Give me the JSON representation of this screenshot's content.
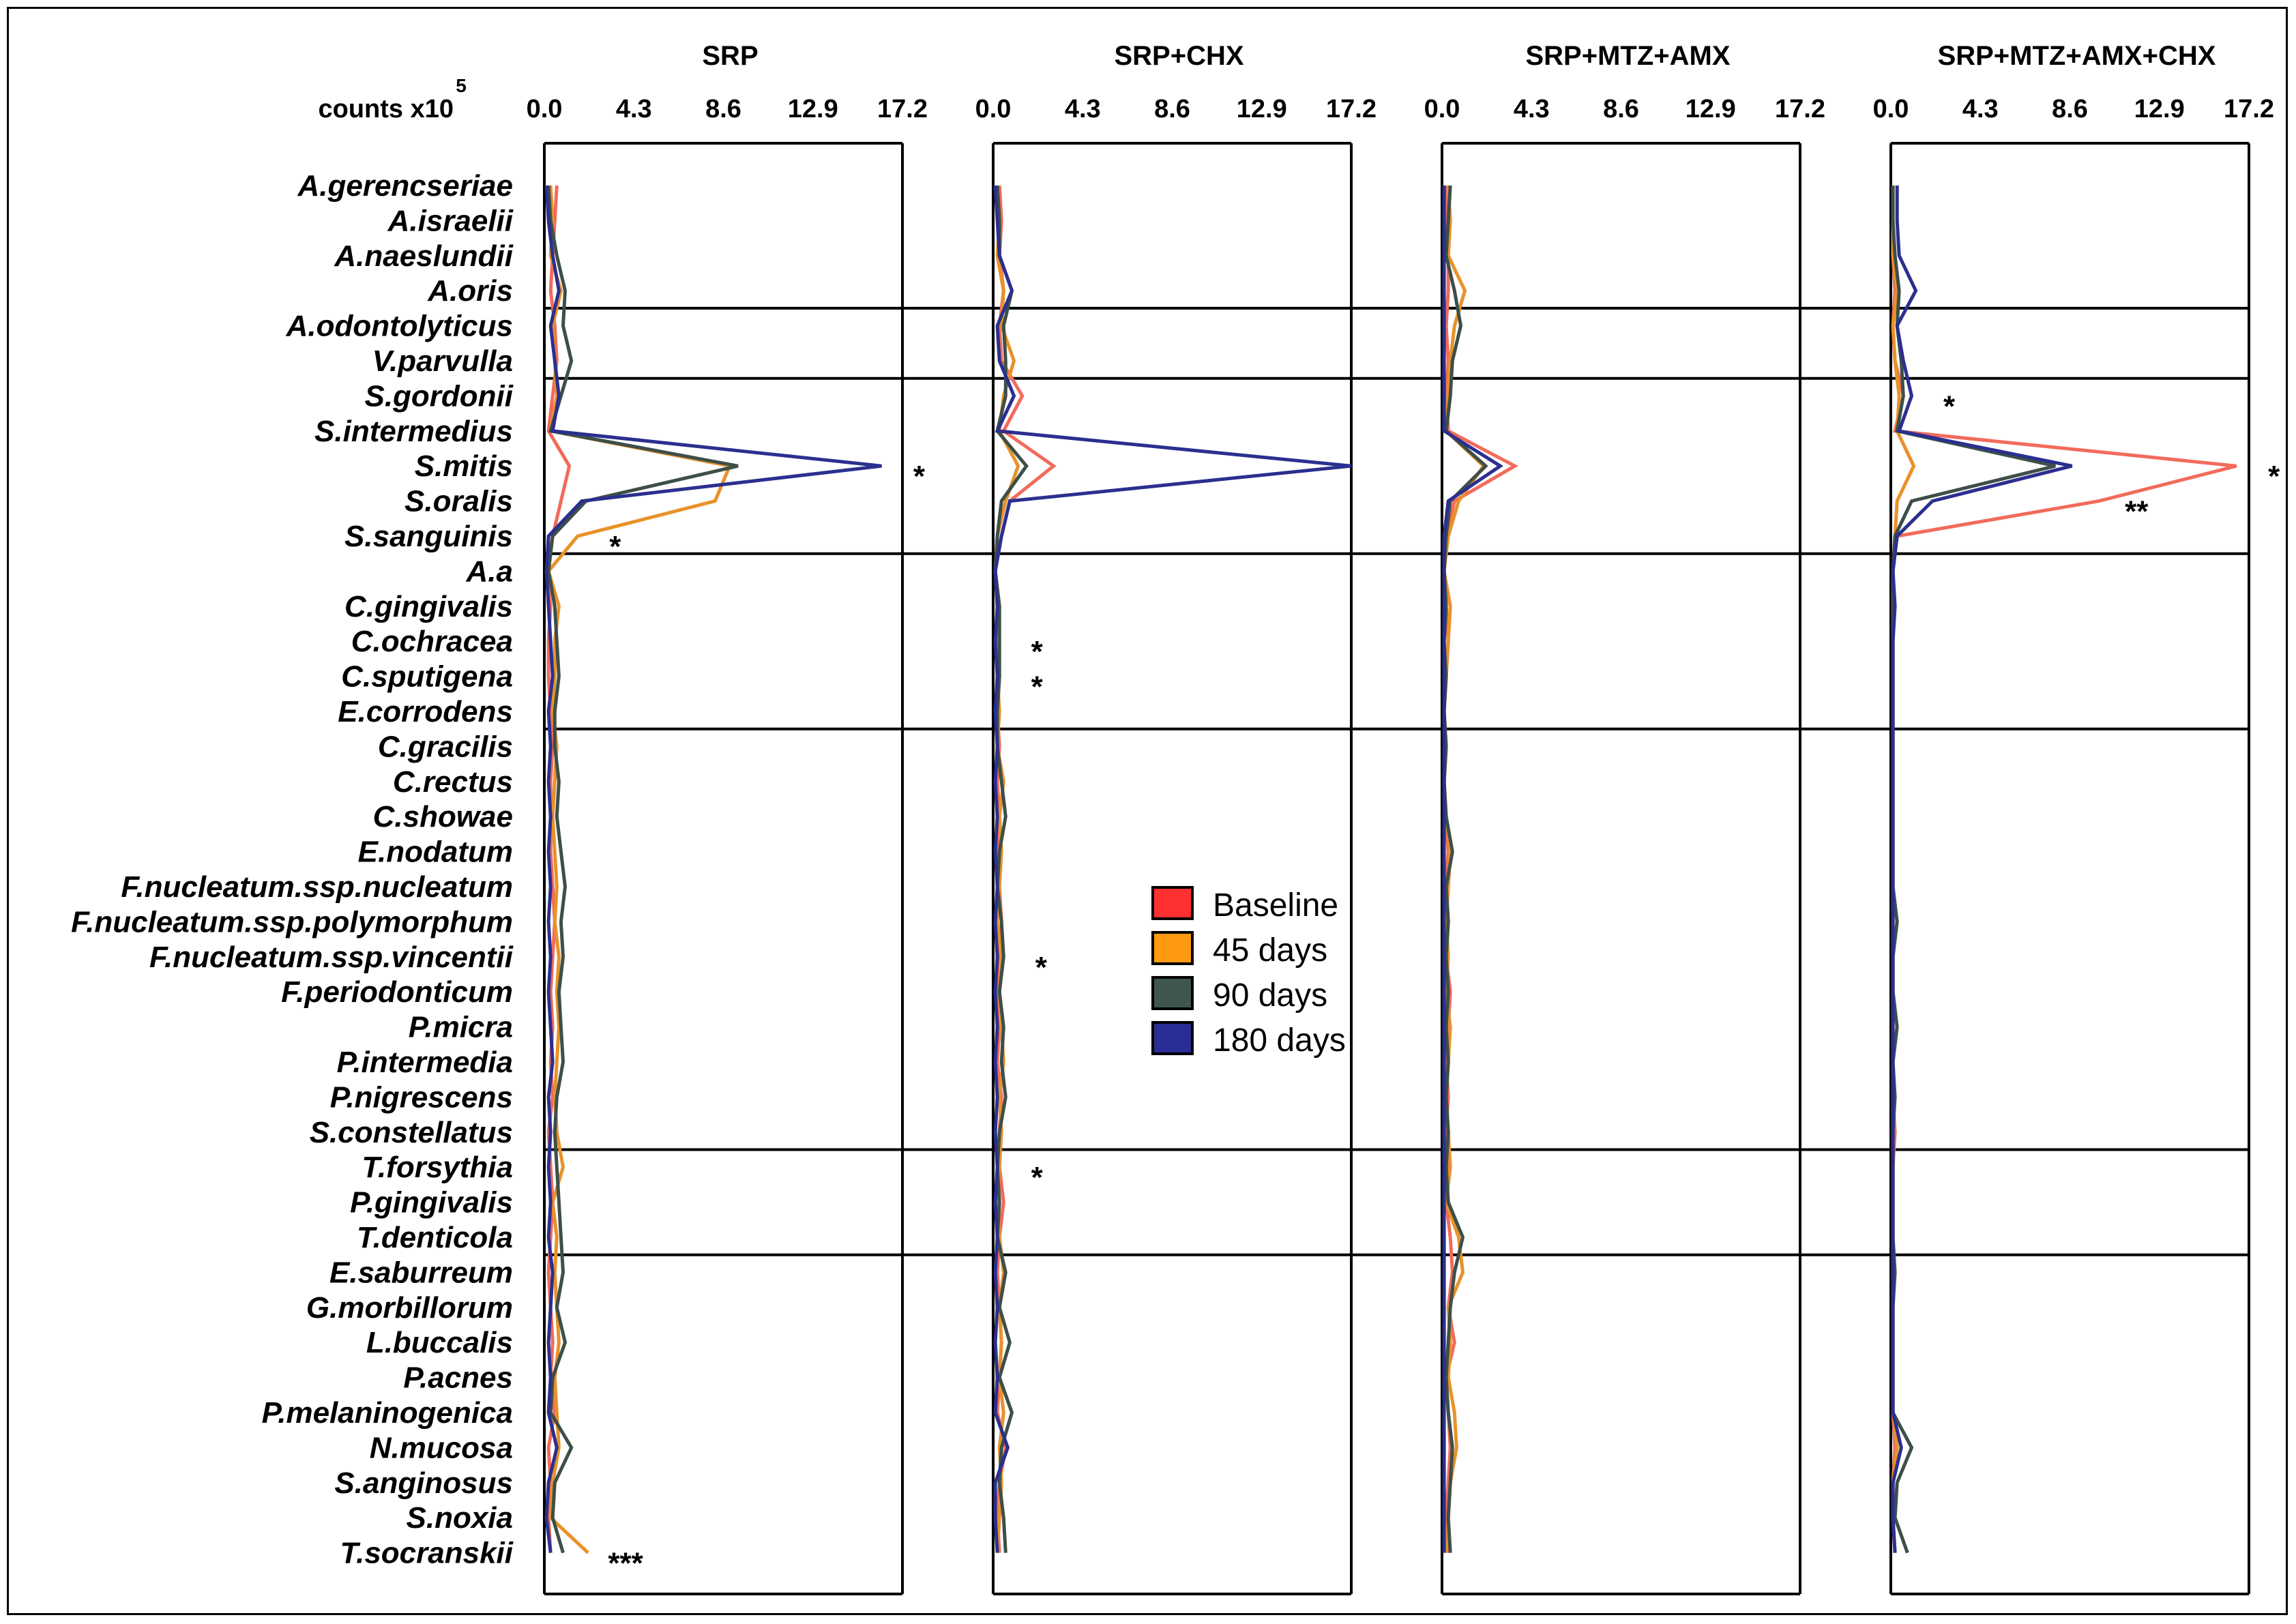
{
  "chart_data": {
    "type": "line",
    "value_units": "counts x10",
    "value_units_exponent": "5",
    "xlim": [
      0,
      17.2
    ],
    "xticks": [
      "0.0",
      "4.3",
      "8.6",
      "12.9",
      "17.2"
    ],
    "species": [
      "A.gerencseriae",
      "A.israelii",
      "A.naeslundii",
      "A.oris",
      "A.odontolyticus",
      "V.parvulla",
      "S.gordonii",
      "S.intermedius",
      "S.mitis",
      "S.oralis",
      "S.sanguinis",
      "A.a",
      "C.gingivalis",
      "C.ochracea",
      "C.sputigena",
      "E.corrodens",
      "C.gracilis",
      "C.rectus",
      "C.showae",
      "E.nodatum",
      "F.nucleatum.ssp.nucleatum",
      "F.nucleatum.ssp.polymorphum",
      "F.nucleatum.ssp.vincentii",
      "F.periodonticum",
      "P.micra",
      "P.intermedia",
      "P.nigrescens",
      "S.constellatus",
      "T.forsythia",
      "P.gingivalis",
      "T.denticola",
      "E.saburreum",
      "G.morbillorum",
      "L.buccalis",
      "P.acnes",
      "P.melaninogenica",
      "N.mucosa",
      "S.anginosus",
      "S.noxia",
      "T.socranskii"
    ],
    "complex_breaks_after": [
      3,
      5,
      10,
      15,
      27,
      30
    ],
    "legend": [
      {
        "name": "Baseline",
        "color": "#f26b5b",
        "swatch": "#ff3030"
      },
      {
        "name": "45 days",
        "color": "#e8922a",
        "swatch": "#ff9a10"
      },
      {
        "name": "90 days",
        "color": "#3d4f48",
        "swatch": "#3f5650"
      },
      {
        "name": "180 days",
        "color": "#2b2f8f",
        "swatch": "#2a2d96"
      }
    ],
    "panels": [
      {
        "title": "SRP",
        "series": [
          {
            "name": "Baseline",
            "values": [
              0.6,
              0.5,
              0.4,
              0.3,
              0.5,
              0.6,
              0.4,
              0.2,
              1.2,
              0.8,
              0.4,
              0.1,
              0.3,
              0.2,
              0.2,
              0.3,
              0.4,
              0.3,
              0.3,
              0.3,
              0.4,
              0.5,
              0.4,
              0.3,
              0.4,
              0.3,
              0.4,
              0.2,
              0.3,
              0.4,
              0.3,
              0.2,
              0.3,
              0.4,
              0.3,
              0.5,
              0.2,
              0.3,
              0.2,
              0.3
            ]
          },
          {
            "name": "45 days",
            "values": [
              0.3,
              0.4,
              0.3,
              0.8,
              0.4,
              0.5,
              0.6,
              0.3,
              8.9,
              8.2,
              1.6,
              0.2,
              0.7,
              0.5,
              0.5,
              0.4,
              0.6,
              0.5,
              0.4,
              0.5,
              0.6,
              0.5,
              0.7,
              0.6,
              0.7,
              0.6,
              0.5,
              0.6,
              0.9,
              0.4,
              0.6,
              0.5,
              0.6,
              0.7,
              0.5,
              0.6,
              0.7,
              0.4,
              0.3,
              2.1
            ]
          },
          {
            "name": "90 days",
            "values": [
              0.2,
              0.3,
              0.6,
              1.0,
              0.9,
              1.3,
              0.8,
              0.3,
              9.3,
              2.0,
              0.4,
              0.2,
              0.5,
              0.6,
              0.7,
              0.5,
              0.5,
              0.7,
              0.6,
              0.8,
              1.0,
              0.8,
              0.9,
              0.7,
              0.8,
              0.9,
              0.6,
              0.5,
              0.6,
              0.7,
              0.8,
              0.9,
              0.6,
              1.0,
              0.4,
              0.3,
              1.3,
              0.5,
              0.4,
              0.9
            ]
          },
          {
            "name": "180 days",
            "values": [
              0.1,
              0.2,
              0.4,
              0.7,
              0.3,
              0.5,
              0.7,
              0.4,
              16.2,
              1.8,
              0.2,
              0.1,
              0.2,
              0.3,
              0.4,
              0.2,
              0.3,
              0.2,
              0.3,
              0.2,
              0.3,
              0.2,
              0.3,
              0.2,
              0.3,
              0.4,
              0.2,
              0.3,
              0.2,
              0.3,
              0.2,
              0.4,
              0.3,
              0.2,
              0.3,
              0.2,
              0.6,
              0.2,
              0.1,
              0.3
            ]
          }
        ],
        "stars": [
          {
            "text": "*",
            "species": "S.mitis"
          },
          {
            "text": "*",
            "species": "S.sanguinis"
          },
          {
            "text": "***",
            "species": "T.socranskii"
          }
        ]
      },
      {
        "title": "SRP+CHX",
        "series": [
          {
            "name": "Baseline",
            "values": [
              0.3,
              0.4,
              0.3,
              0.5,
              0.3,
              0.4,
              1.4,
              0.5,
              2.9,
              0.8,
              0.4,
              0.1,
              0.3,
              0.2,
              0.3,
              0.2,
              0.3,
              0.2,
              0.3,
              0.2,
              0.3,
              0.4,
              0.3,
              0.2,
              0.3,
              0.2,
              0.4,
              0.3,
              0.3,
              0.5,
              0.3,
              0.2,
              0.3,
              0.4,
              0.3,
              0.2,
              0.6,
              0.3,
              0.2,
              0.3
            ]
          },
          {
            "name": "45 days",
            "values": [
              0.2,
              0.3,
              0.2,
              0.5,
              0.4,
              1.0,
              0.5,
              0.3,
              1.2,
              0.6,
              0.2,
              0.1,
              0.2,
              0.3,
              0.2,
              0.3,
              0.2,
              0.5,
              0.3,
              0.4,
              0.3,
              0.2,
              0.4,
              0.3,
              0.4,
              0.5,
              0.3,
              0.4,
              0.3,
              0.2,
              0.3,
              0.5,
              0.3,
              0.4,
              0.3,
              0.5,
              0.3,
              0.4,
              0.3,
              0.2
            ]
          },
          {
            "name": "90 days",
            "values": [
              0.2,
              0.3,
              0.3,
              0.9,
              0.5,
              0.6,
              0.6,
              0.2,
              1.6,
              0.4,
              0.2,
              0.1,
              0.3,
              0.3,
              0.3,
              0.2,
              0.2,
              0.4,
              0.6,
              0.3,
              0.2,
              0.4,
              0.5,
              0.3,
              0.5,
              0.4,
              0.6,
              0.3,
              0.2,
              0.3,
              0.2,
              0.6,
              0.3,
              0.8,
              0.3,
              0.9,
              0.4,
              0.3,
              0.5,
              0.6
            ]
          },
          {
            "name": "180 days",
            "values": [
              0.1,
              0.2,
              0.3,
              0.9,
              0.2,
              0.3,
              1.0,
              0.2,
              17.2,
              0.8,
              0.4,
              0.1,
              0.2,
              0.1,
              0.2,
              0.1,
              0.2,
              0.1,
              0.2,
              0.1,
              0.2,
              0.1,
              0.2,
              0.1,
              0.2,
              0.1,
              0.2,
              0.1,
              0.2,
              0.1,
              0.2,
              0.1,
              0.2,
              0.1,
              0.2,
              0.1,
              0.7,
              0.1,
              0.1,
              0.2
            ]
          }
        ],
        "stars": [
          {
            "text": "*",
            "species": "C.ochracea"
          },
          {
            "text": "*",
            "species": "C.sputigena"
          },
          {
            "text": "*",
            "species": "F.nucleatum.ssp.vincentii"
          },
          {
            "text": "*",
            "species": "T.forsythia"
          }
        ]
      },
      {
        "title": "SRP+MTZ+AMX",
        "series": [
          {
            "name": "Baseline",
            "values": [
              0.2,
              0.2,
              0.3,
              0.3,
              0.2,
              0.3,
              0.2,
              0.3,
              3.5,
              0.6,
              0.2,
              0.1,
              0.2,
              0.3,
              0.2,
              0.1,
              0.2,
              0.1,
              0.2,
              0.3,
              0.2,
              0.3,
              0.2,
              0.4,
              0.3,
              0.2,
              0.3,
              0.2,
              0.3,
              0.2,
              0.4,
              0.5,
              0.3,
              0.6,
              0.2,
              0.3,
              0.4,
              0.3,
              0.2,
              0.3
            ]
          },
          {
            "name": "45 days",
            "values": [
              0.3,
              0.4,
              0.3,
              1.1,
              0.6,
              0.4,
              0.3,
              0.2,
              2.0,
              0.8,
              0.3,
              0.1,
              0.4,
              0.3,
              0.2,
              0.1,
              0.2,
              0.1,
              0.2,
              0.4,
              0.3,
              0.2,
              0.3,
              0.2,
              0.4,
              0.3,
              0.2,
              0.3,
              0.4,
              0.2,
              0.8,
              1.0,
              0.3,
              0.4,
              0.3,
              0.6,
              0.7,
              0.4,
              0.3,
              0.2
            ]
          },
          {
            "name": "90 days",
            "values": [
              0.4,
              0.3,
              0.2,
              0.6,
              0.9,
              0.5,
              0.4,
              0.2,
              2.1,
              0.4,
              0.2,
              0.1,
              0.2,
              0.1,
              0.2,
              0.1,
              0.2,
              0.1,
              0.2,
              0.5,
              0.2,
              0.3,
              0.2,
              0.3,
              0.2,
              0.3,
              0.2,
              0.3,
              0.2,
              0.3,
              1.0,
              0.6,
              0.4,
              0.3,
              0.2,
              0.3,
              0.5,
              0.4,
              0.3,
              0.4
            ]
          },
          {
            "name": "180 days",
            "values": [
              0.1,
              0.1,
              0.1,
              0.1,
              0.1,
              0.1,
              0.1,
              0.1,
              2.8,
              0.3,
              0.1,
              0.1,
              0.1,
              0.1,
              0.1,
              0.1,
              0.1,
              0.1,
              0.1,
              0.1,
              0.1,
              0.1,
              0.1,
              0.1,
              0.1,
              0.1,
              0.1,
              0.1,
              0.1,
              0.1,
              0.1,
              0.1,
              0.1,
              0.1,
              0.1,
              0.1,
              0.1,
              0.1,
              0.1,
              0.1
            ]
          }
        ],
        "stars": []
      },
      {
        "title": "SRP+MTZ+AMX+CHX",
        "series": [
          {
            "name": "Baseline",
            "values": [
              0.1,
              0.1,
              0.1,
              0.2,
              0.1,
              0.2,
              0.6,
              0.2,
              16.6,
              10.0,
              0.3,
              0.1,
              0.1,
              0.1,
              0.1,
              0.1,
              0.1,
              0.1,
              0.1,
              0.1,
              0.1,
              0.1,
              0.1,
              0.1,
              0.1,
              0.1,
              0.1,
              0.2,
              0.1,
              0.1,
              0.1,
              0.1,
              0.1,
              0.1,
              0.1,
              0.1,
              0.2,
              0.1,
              0.1,
              0.2
            ]
          },
          {
            "name": "45 days",
            "values": [
              0.1,
              0.1,
              0.1,
              0.3,
              0.1,
              0.2,
              0.4,
              0.3,
              1.1,
              0.3,
              0.2,
              0.1,
              0.1,
              0.1,
              0.1,
              0.1,
              0.1,
              0.1,
              0.1,
              0.1,
              0.1,
              0.1,
              0.1,
              0.1,
              0.1,
              0.1,
              0.1,
              0.1,
              0.1,
              0.1,
              0.1,
              0.1,
              0.1,
              0.1,
              0.1,
              0.1,
              0.3,
              0.1,
              0.1,
              0.2
            ]
          },
          {
            "name": "90 days",
            "values": [
              0.1,
              0.1,
              0.2,
              0.4,
              0.3,
              0.5,
              0.6,
              0.3,
              7.9,
              1.0,
              0.2,
              0.1,
              0.1,
              0.1,
              0.1,
              0.1,
              0.1,
              0.1,
              0.1,
              0.1,
              0.1,
              0.3,
              0.1,
              0.1,
              0.3,
              0.1,
              0.2,
              0.1,
              0.1,
              0.1,
              0.1,
              0.2,
              0.1,
              0.1,
              0.1,
              0.1,
              1.0,
              0.3,
              0.2,
              0.8
            ]
          },
          {
            "name": "180 days",
            "values": [
              0.3,
              0.3,
              0.4,
              1.2,
              0.3,
              0.6,
              1.0,
              0.4,
              8.7,
              2.0,
              0.3,
              0.1,
              0.2,
              0.1,
              0.1,
              0.1,
              0.1,
              0.1,
              0.1,
              0.1,
              0.1,
              0.1,
              0.1,
              0.1,
              0.1,
              0.1,
              0.1,
              0.1,
              0.1,
              0.1,
              0.1,
              0.1,
              0.1,
              0.1,
              0.1,
              0.1,
              0.5,
              0.1,
              0.1,
              0.2
            ]
          }
        ],
        "stars": [
          {
            "text": "*",
            "species": "S.gordonii"
          },
          {
            "text": "*",
            "species": "S.mitis"
          },
          {
            "text": "**",
            "species": "S.oralis"
          }
        ]
      }
    ]
  }
}
